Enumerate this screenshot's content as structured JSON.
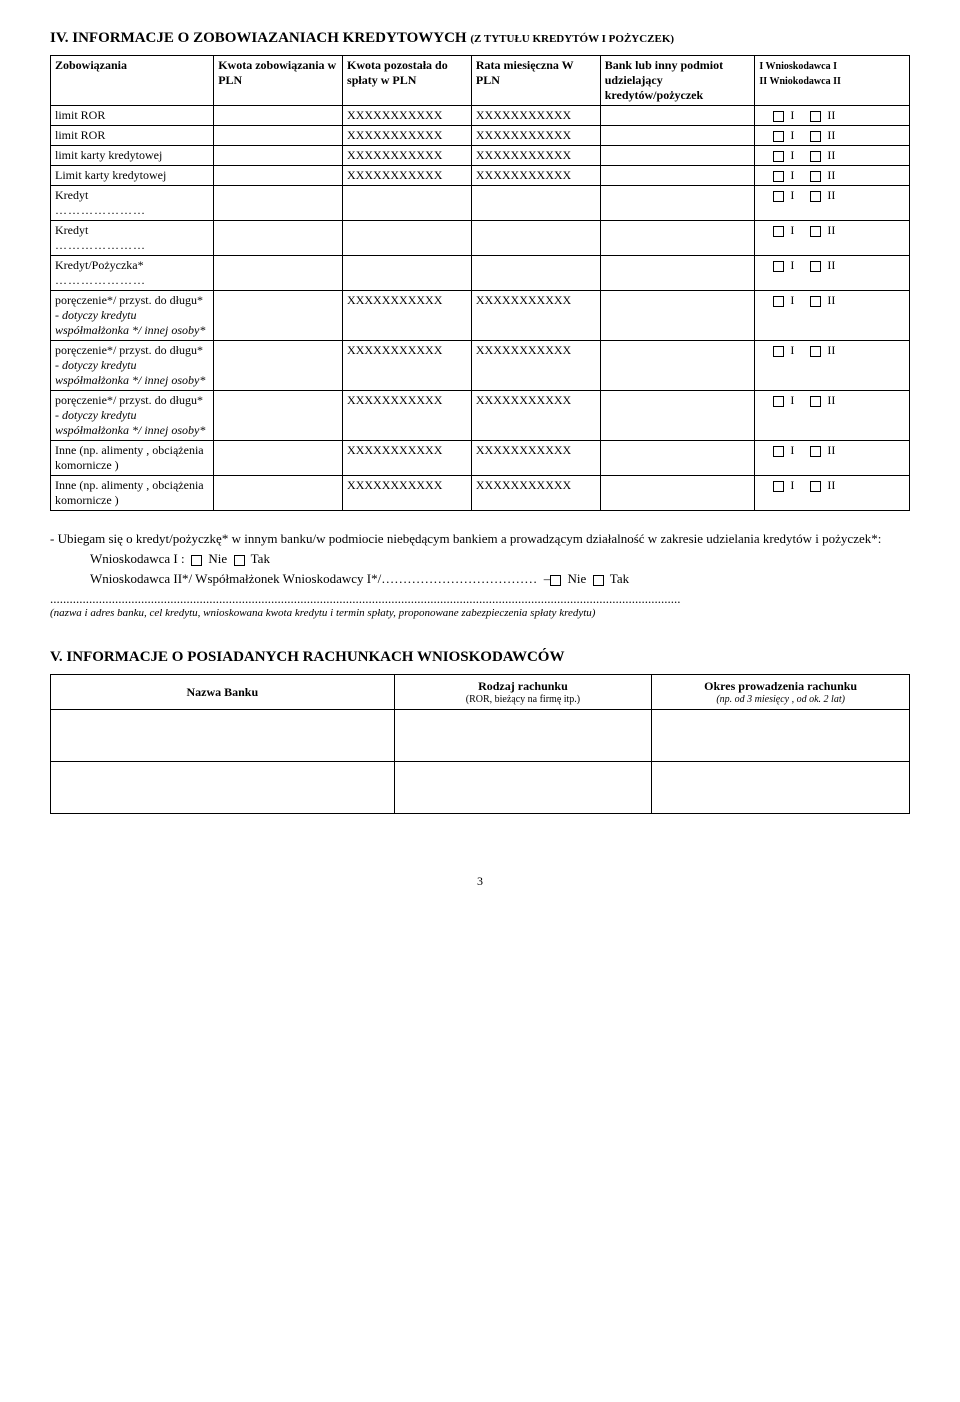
{
  "section4": {
    "title_main": "IV. INFORMACJE O ZOBOWIAZANIACH KREDYTOWYCH ",
    "title_sub": "(Z TYTUŁU KREDYTÓW I POŻYCZEK)",
    "headers": {
      "zob": "Zobowiązania",
      "kzob": "Kwota zobowiązania w PLN",
      "kpoz": "Kwota pozostała do spłaty w PLN",
      "rata": "Rata miesięczna W PLN",
      "bank": "Bank lub inny podmiot udzielający kredytów/pożyczek",
      "wn1": "I Wnioskodawca I",
      "wn2": "II Wniokodawca II"
    },
    "x": "XXXXXXXXXXX",
    "rows": [
      {
        "label": "limit ROR",
        "x_kpoz": true,
        "x_rata": true
      },
      {
        "label": "limit ROR",
        "x_kpoz": true,
        "x_rata": true
      },
      {
        "label": "limit karty kredytowej",
        "x_kpoz": true,
        "x_rata": true
      },
      {
        "label": "Limit karty kredytowej",
        "x_kpoz": true,
        "x_rata": true
      },
      {
        "label": "Kredyt",
        "dots": true
      },
      {
        "label": "Kredyt",
        "dots": true
      },
      {
        "label": "Kredyt/Pożyczka*",
        "dots": true
      },
      {
        "label_html": "poręczenie*/ przyst. do długu* - <i>dotyczy kredytu współmałżonka */ innej osoby*</i>",
        "x_kpoz": true,
        "x_rata": true
      },
      {
        "label_html": "poręczenie*/ przyst. do długu* - <i>dotyczy kredytu współmałżonka */ innej osoby*</i>",
        "x_kpoz": true,
        "x_rata": true
      },
      {
        "label_html": "poręczenie*/ przyst. do długu* - <i>dotyczy kredytu współmałżonka */ innej osoby*</i>",
        "x_kpoz": true,
        "x_rata": true
      },
      {
        "label": "Inne (np. alimenty , obciążenia komornicze )",
        "x_kpoz": true,
        "x_rata": true
      },
      {
        "label": "Inne (np. alimenty , obciążenia komornicze )",
        "x_kpoz": true,
        "x_rata": true
      }
    ],
    "check_labels": {
      "i": "I",
      "ii": "II"
    }
  },
  "note": {
    "line1": "- Ubiegam się o kredyt/pożyczkę* w innym banku/w podmiocie niebędącym bankiem a prowadzącym działalność w zakresie udzielania kredytów i pożyczek*:",
    "wn1_label": "Wnioskodawca I :",
    "wn2_label": "Wnioskodawca II*/ Współmałżonek Wnioskodawcy I*/………………………………",
    "nie": "Nie",
    "tak": "Tak",
    "dash": "–",
    "explain": "(nazwa i adres banku, cel kredytu, wnioskowana kwota kredytu i termin spłaty, proponowane zabezpieczenia spłaty kredytu)"
  },
  "section5": {
    "title": "V. INFORMACJE O POSIADANYCH  RACHUNKACH WNIOSKODAWCÓW",
    "h1": "Nazwa Banku",
    "h2": "Rodzaj rachunku",
    "h2_sub": "(ROR, bieżący na firmę itp.)",
    "h3": "Okres prowadzenia rachunku",
    "h3_sub": "(np. od 3 miesięcy , od ok. 2 lat)"
  },
  "page_number": "3"
}
